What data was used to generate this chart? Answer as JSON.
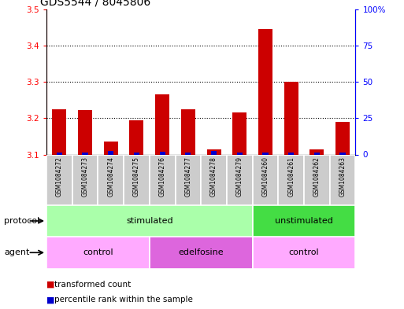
{
  "title": "GDS5544 / 8045806",
  "samples": [
    "GSM1084272",
    "GSM1084273",
    "GSM1084274",
    "GSM1084275",
    "GSM1084276",
    "GSM1084277",
    "GSM1084278",
    "GSM1084279",
    "GSM1084260",
    "GSM1084261",
    "GSM1084262",
    "GSM1084263"
  ],
  "red_values": [
    3.225,
    3.222,
    3.135,
    3.195,
    3.265,
    3.225,
    3.113,
    3.215,
    3.445,
    3.3,
    3.113,
    3.19
  ],
  "blue_values": [
    1.5,
    1.5,
    2.5,
    1.5,
    2.0,
    1.5,
    2.5,
    1.5,
    1.5,
    1.5,
    1.5,
    1.5
  ],
  "ylim_left": [
    3.1,
    3.5
  ],
  "ylim_right": [
    0,
    100
  ],
  "yticks_left": [
    3.1,
    3.2,
    3.3,
    3.4,
    3.5
  ],
  "yticks_right": [
    0,
    25,
    50,
    75,
    100
  ],
  "ytick_labels_right": [
    "0",
    "25",
    "50",
    "75",
    "100%"
  ],
  "protocol_groups": [
    {
      "label": "stimulated",
      "start": 0,
      "end": 8,
      "color": "#AAFFAA"
    },
    {
      "label": "unstimulated",
      "start": 8,
      "end": 12,
      "color": "#44DD44"
    }
  ],
  "agent_groups": [
    {
      "label": "control",
      "start": 0,
      "end": 4,
      "color": "#FFAAFF"
    },
    {
      "label": "edelfosine",
      "start": 4,
      "end": 8,
      "color": "#DD66DD"
    },
    {
      "label": "control",
      "start": 8,
      "end": 12,
      "color": "#FFAAFF"
    }
  ],
  "legend_red_label": "transformed count",
  "legend_blue_label": "percentile rank within the sample",
  "protocol_label": "protocol",
  "agent_label": "agent",
  "bar_color_red": "#CC0000",
  "bar_color_blue": "#0000CC",
  "bar_width": 0.55,
  "background_color": "#FFFFFF",
  "plot_bg_color": "#FFFFFF",
  "title_fontsize": 10,
  "tick_fontsize": 7.5,
  "label_fontsize": 8.5
}
